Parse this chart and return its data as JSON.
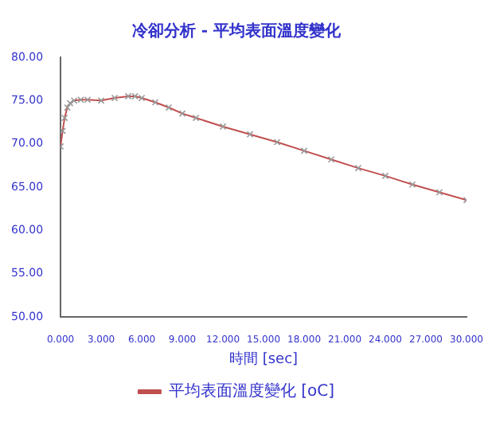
{
  "chart_data": {
    "type": "line",
    "title": "冷卻分析 - 平均表面溫度變化",
    "xlabel": "時間 [sec]",
    "series": [
      {
        "name": "平均表面溫度變化 [oC]",
        "color": "#c05050",
        "x": [
          0,
          0.15,
          0.3,
          0.5,
          0.7,
          1,
          1.5,
          2,
          3,
          4,
          5,
          5.5,
          6,
          7,
          8,
          9,
          10,
          12,
          14,
          16,
          18,
          20,
          22,
          24,
          26,
          28,
          30
        ],
        "values": [
          69.7,
          71.5,
          73,
          74.2,
          74.7,
          75,
          75.1,
          75.1,
          75,
          75.3,
          75.5,
          75.5,
          75.3,
          74.8,
          74.2,
          73.5,
          73,
          72,
          71.1,
          70.2,
          69.2,
          68.2,
          67.2,
          66.3,
          65.3,
          64.4,
          63.5
        ]
      }
    ],
    "xlim": [
      0,
      30
    ],
    "xticks": [
      {
        "value": 0,
        "label": "0.000"
      },
      {
        "value": 3,
        "label": "3.000"
      },
      {
        "value": 6,
        "label": "6.000"
      },
      {
        "value": 9,
        "label": "9.000"
      },
      {
        "value": 12,
        "label": "12.000"
      },
      {
        "value": 15,
        "label": "15.000"
      },
      {
        "value": 18,
        "label": "18.000"
      },
      {
        "value": 21,
        "label": "21.000"
      },
      {
        "value": 24,
        "label": "24.000"
      },
      {
        "value": 27,
        "label": "27.000"
      },
      {
        "value": 30,
        "label": "30.000"
      }
    ],
    "ylim": [
      50,
      80
    ],
    "yticks": [
      {
        "value": 50,
        "label": "50.00"
      },
      {
        "value": 55,
        "label": "55.00"
      },
      {
        "value": 60,
        "label": "60.00"
      },
      {
        "value": 65,
        "label": "65.00"
      },
      {
        "value": 70,
        "label": "70.00"
      },
      {
        "value": 75,
        "label": "75.00"
      },
      {
        "value": 80,
        "label": "80.00"
      }
    ],
    "grid": false,
    "legend": "bottom",
    "marker": "cross",
    "line_style": "solid"
  }
}
